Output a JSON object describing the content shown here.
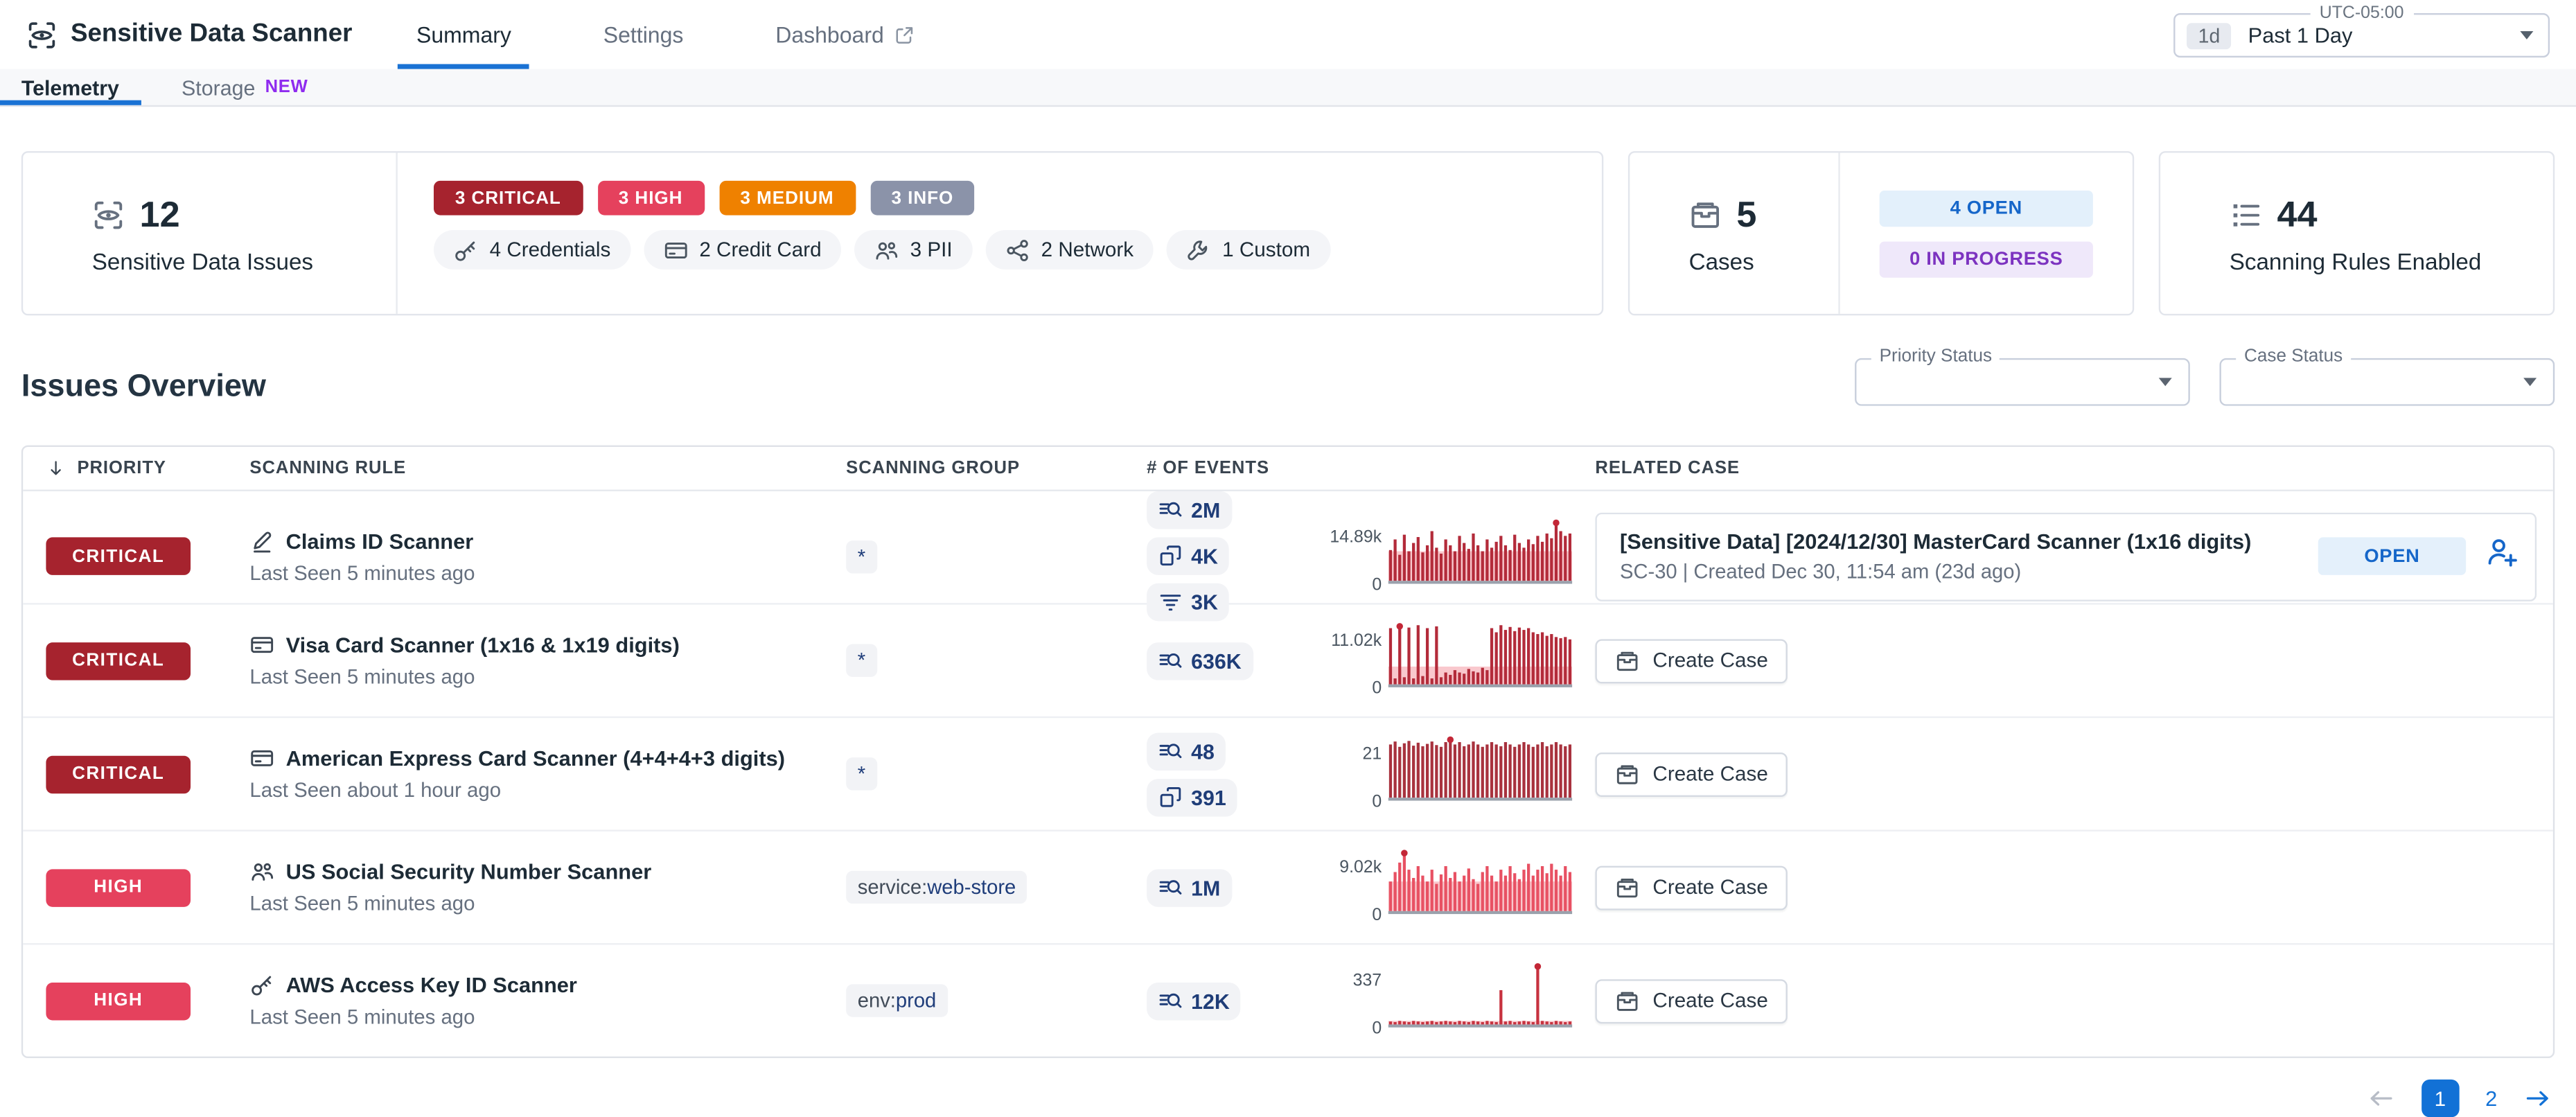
{
  "colors": {
    "accent_blue": "#1a72d4",
    "critical": "#a6232e",
    "high": "#e5415d",
    "medium": "#ef8100",
    "info": "#8b93a9",
    "open_text": "#1566c9",
    "open_bg": "#e4f0fb",
    "in_progress_text": "#7c33c0",
    "in_progress_bg": "#efe8fa",
    "spark_red": "#b32b3a",
    "new_badge": "#8f2bef"
  },
  "header": {
    "title": "Sensitive Data Scanner",
    "tabs": [
      {
        "label": "Summary",
        "active": true,
        "external": false
      },
      {
        "label": "Settings",
        "active": false,
        "external": false
      },
      {
        "label": "Dashboard",
        "active": false,
        "external": true
      }
    ],
    "time_range": {
      "timezone": "UTC-05:00",
      "shortcut": "1d",
      "label": "Past 1 Day"
    }
  },
  "subtabs": [
    {
      "label": "Telemetry",
      "active": true,
      "badge": ""
    },
    {
      "label": "Storage",
      "active": false,
      "badge": "NEW"
    }
  ],
  "summary": {
    "issues": {
      "value": "12",
      "label": "Sensitive Data Issues",
      "icon": "scan-eye-icon"
    },
    "severities": [
      {
        "label": "3 CRITICAL",
        "color": "#a6232e"
      },
      {
        "label": "3 HIGH",
        "color": "#e5415d"
      },
      {
        "label": "3 MEDIUM",
        "color": "#ef8100"
      },
      {
        "label": "3 INFO",
        "color": "#8b93a9"
      }
    ],
    "categories": [
      {
        "icon": "key-icon",
        "label": "4 Credentials"
      },
      {
        "icon": "credit-card-icon",
        "label": "2 Credit Card"
      },
      {
        "icon": "people-icon",
        "label": "3 PII"
      },
      {
        "icon": "network-icon",
        "label": "2 Network"
      },
      {
        "icon": "wrench-icon",
        "label": "1 Custom"
      }
    ],
    "cases": {
      "value": "5",
      "label": "Cases",
      "icon": "case-icon",
      "statuses": [
        {
          "label": "4 OPEN",
          "bg": "#e3f0fb",
          "color": "#1566c9"
        },
        {
          "label": "0 IN PROGRESS",
          "bg": "#efe8fa",
          "color": "#7c33c0"
        }
      ]
    },
    "rules": {
      "value": "44",
      "label": "Scanning Rules Enabled",
      "icon": "rules-list-icon"
    }
  },
  "issues_overview": {
    "title": "Issues Overview",
    "filters": [
      {
        "label": "Priority Status",
        "value": ""
      },
      {
        "label": "Case Status",
        "value": ""
      }
    ]
  },
  "table": {
    "columns": [
      "PRIORITY",
      "SCANNING RULE",
      "SCANNING GROUP",
      "# OF EVENTS",
      "RELATED CASE"
    ],
    "priority_colors": {
      "CRITICAL": "#a6232e",
      "HIGH": "#e5415d"
    },
    "create_case_label": "Create Case",
    "rows": [
      {
        "priority": "CRITICAL",
        "rule_icon": "pencil-icon",
        "rule_name": "Claims ID Scanner",
        "last_seen": "Last Seen 5 minutes ago",
        "group": {
          "key": "",
          "value": "*"
        },
        "events": [
          {
            "icon": "logs-icon",
            "value": "2M"
          },
          {
            "icon": "spans-icon",
            "value": "4K"
          },
          {
            "icon": "rum-icon",
            "value": "3K"
          }
        ],
        "sparkline": {
          "max_label": "14.89k",
          "min_label": "0",
          "bar_color": "#b32b3a",
          "underlay": 0.5,
          "values": [
            0.52,
            0.7,
            0.44,
            0.78,
            0.5,
            0.64,
            0.74,
            0.48,
            0.6,
            0.84,
            0.56,
            0.46,
            0.7,
            0.6,
            0.5,
            0.76,
            0.64,
            0.54,
            0.8,
            0.6,
            0.5,
            0.7,
            0.56,
            0.66,
            0.76,
            0.6,
            0.52,
            0.78,
            0.64,
            0.56,
            0.7,
            0.62,
            0.76,
            0.66,
            0.8,
            0.72,
            1,
            0.84,
            0.76,
            0.8
          ]
        },
        "related_case": {
          "type": "case",
          "title": "[Sensitive Data] [2024/12/30] MasterCard Scanner (1x16 digits)",
          "subtitle": "SC-30 | Created Dec 30, 11:54 am (23d ago)",
          "status": "OPEN"
        }
      },
      {
        "priority": "CRITICAL",
        "rule_icon": "credit-card-icon",
        "rule_name": "Visa Card Scanner (1x16 & 1x19 digits)",
        "last_seen": "Last Seen 5 minutes ago",
        "group": {
          "key": "",
          "value": "*"
        },
        "events": [
          {
            "icon": "logs-icon",
            "value": "636K"
          }
        ],
        "sparkline": {
          "max_label": "11.02k",
          "min_label": "0",
          "bar_color": "#b32b3a",
          "underlay": 0.3,
          "values": [
            0.95,
            0.1,
            1,
            0.12,
            0.96,
            0.1,
            1,
            0.14,
            0.95,
            0.1,
            0.98,
            0.12,
            0.2,
            0.16,
            0.24,
            0.2,
            0.18,
            0.26,
            0.22,
            0.2,
            0.28,
            0.24,
            0.95,
            0.88,
            1,
            0.92,
            0.97,
            0.9,
            0.96,
            0.92,
            0.95,
            0.88,
            0.85,
            0.88,
            0.82,
            0.85,
            0.8,
            0.78,
            0.8,
            0.76
          ]
        },
        "related_case": {
          "type": "button"
        }
      },
      {
        "priority": "CRITICAL",
        "rule_icon": "credit-card-icon",
        "rule_name": "American Express Card Scanner (4+4+4+3 digits)",
        "last_seen": "Last Seen about 1 hour ago",
        "group": {
          "key": "",
          "value": "*"
        },
        "events": [
          {
            "icon": "logs-icon",
            "value": "48"
          },
          {
            "icon": "spans-icon",
            "value": "391"
          }
        ],
        "sparkline": {
          "max_label": "21",
          "min_label": "0",
          "bar_color": "#a8323e",
          "underlay": 0,
          "values": [
            0.9,
            0.95,
            0.86,
            0.92,
            0.96,
            0.88,
            0.93,
            0.87,
            0.91,
            0.95,
            0.89,
            0.86,
            0.94,
            1,
            0.9,
            0.94,
            0.87,
            0.9,
            0.95,
            0.9,
            0.86,
            0.9,
            0.94,
            0.9,
            0.87,
            0.94,
            0.9,
            0.86,
            0.9,
            0.94,
            0.9,
            0.86,
            0.9,
            0.94,
            0.87,
            0.9,
            0.94,
            0.9,
            0.87,
            0.9
          ]
        },
        "related_case": {
          "type": "button"
        }
      },
      {
        "priority": "HIGH",
        "rule_icon": "people-icon",
        "rule_name": "US Social Security Number Scanner",
        "last_seen": "Last Seen 5 minutes ago",
        "group": {
          "key": "service:",
          "value": "web-store"
        },
        "events": [
          {
            "icon": "logs-icon",
            "value": "1M"
          }
        ],
        "sparkline": {
          "max_label": "9.02k",
          "min_label": "0",
          "bar_color": "#e85163",
          "underlay": 0.5,
          "values": [
            0.5,
            0.66,
            0.82,
            1,
            0.7,
            0.56,
            0.76,
            0.6,
            0.5,
            0.7,
            0.46,
            0.62,
            0.76,
            0.56,
            0.66,
            0.5,
            0.6,
            0.72,
            0.54,
            0.46,
            0.66,
            0.76,
            0.6,
            0.5,
            0.7,
            0.6,
            0.76,
            0.64,
            0.54,
            0.7,
            0.8,
            0.6,
            0.7,
            0.76,
            0.64,
            0.8,
            0.7,
            0.6,
            0.76,
            0.66
          ]
        },
        "related_case": {
          "type": "button"
        }
      },
      {
        "priority": "HIGH",
        "rule_icon": "key-icon",
        "rule_name": "AWS Access Key ID Scanner",
        "last_seen": "Last Seen 5 minutes ago",
        "group": {
          "key": "env:",
          "value": "prod"
        },
        "events": [
          {
            "icon": "logs-icon",
            "value": "12K"
          }
        ],
        "sparkline": {
          "max_label": "337",
          "min_label": "0",
          "bar_color": "#c7323f",
          "underlay": 0.06,
          "values": [
            0.05,
            0.04,
            0.06,
            0.05,
            0.04,
            0.06,
            0.05,
            0.04,
            0.05,
            0.06,
            0.04,
            0.05,
            0.06,
            0.05,
            0.04,
            0.06,
            0.05,
            0.04,
            0.06,
            0.05,
            0.04,
            0.06,
            0.05,
            0.04,
            0.58,
            0.05,
            0.06,
            0.04,
            0.05,
            0.06,
            0.05,
            0.04,
            1,
            0.06,
            0.05,
            0.04,
            0.06,
            0.05,
            0.04,
            0.05
          ]
        },
        "related_case": {
          "type": "button"
        }
      }
    ]
  },
  "pagination": {
    "pages": [
      "1",
      "2"
    ],
    "current": "1"
  }
}
